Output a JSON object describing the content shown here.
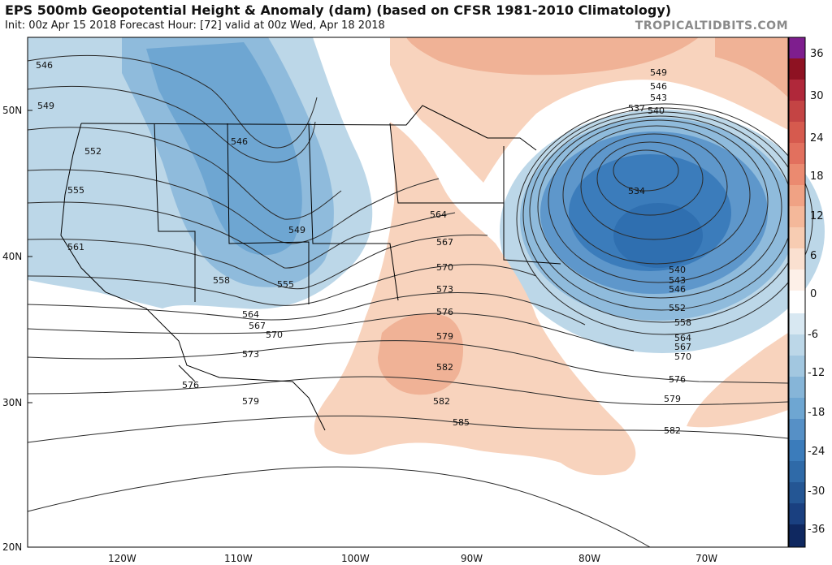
{
  "header": {
    "title": "EPS 500mb Geopotential Height & Anomaly (dam) (based on CFSR 1981-2010 Climatology)",
    "subtitle": "Init: 00z Apr 15 2018   Forecast Hour: [72]   valid at 00z Wed, Apr 18 2018",
    "watermark": "TROPICALTIDBITS.COM"
  },
  "axes": {
    "lat_labels": [
      "50N",
      "40N",
      "30N",
      "20N"
    ],
    "lon_labels": [
      "120W",
      "110W",
      "100W",
      "90W",
      "80W",
      "70W"
    ]
  },
  "colorbar": {
    "ticks": [
      "36",
      "30",
      "24",
      "18",
      "12",
      "6",
      "0",
      "-6",
      "-12",
      "-18",
      "-24",
      "-30",
      "-36"
    ]
  },
  "height_labels": [
    "546",
    "549",
    "552",
    "555",
    "561",
    "558",
    "555",
    "549",
    "546",
    "564",
    "567",
    "570",
    "573",
    "576",
    "579",
    "582",
    "585",
    "540",
    "543",
    "537",
    "534",
    "546",
    "552",
    "558",
    "564",
    "567",
    "570",
    "576",
    "579",
    "582",
    "549",
    "546",
    "543",
    "540",
    "567",
    "564",
    "570",
    "573",
    "576",
    "579",
    "582"
  ],
  "colors": {
    "negative_light": "#bcd7e8",
    "negative_mid": "#8fbbdc",
    "negative_deep": "#4f8fc6",
    "negative_core": "#2f6fb0",
    "positive_light": "#f8d3bd",
    "positive_mid": "#f0b296",
    "contour": "#2a2a2a",
    "border": "#000000"
  }
}
